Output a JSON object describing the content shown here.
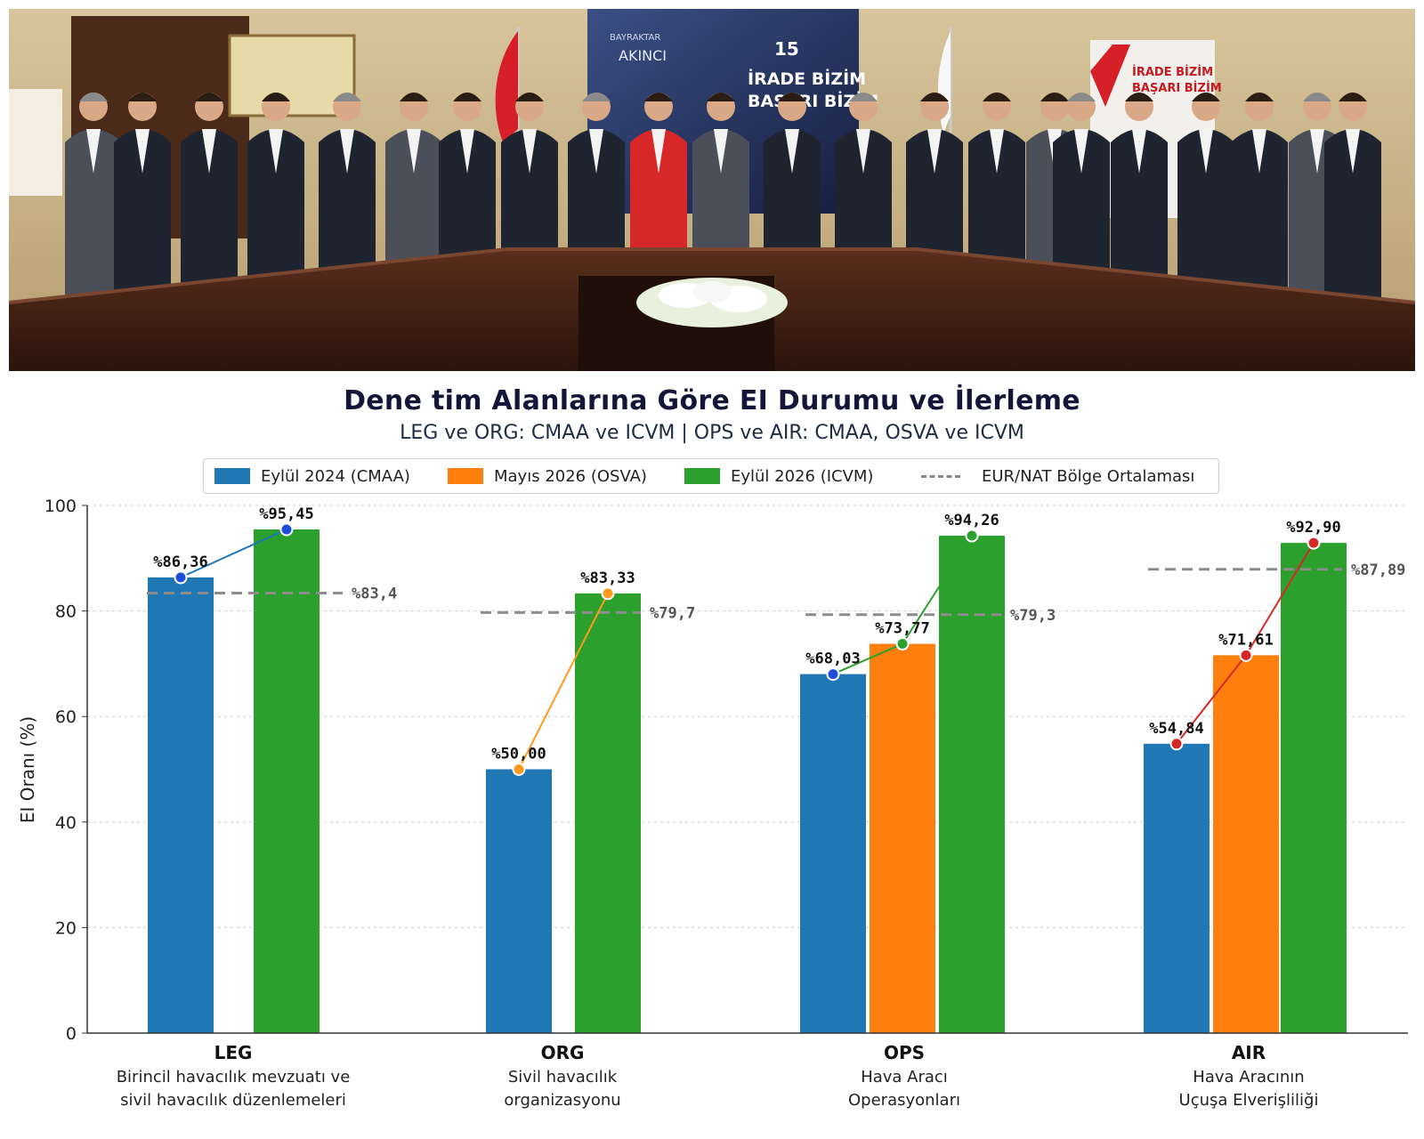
{
  "chart_data": {
    "type": "bar",
    "title": "Dene tim Alanlarına Göre EI Durumu ve İlerleme",
    "subtitle": "LEG ve ORG: CMAA ve ICVM | OPS ve AIR: CMAA, OSVA ve ICVM",
    "ylabel": "EI Oranı (%)",
    "ylim": [
      0,
      100
    ],
    "yticks": [
      0,
      20,
      40,
      60,
      80,
      100
    ],
    "grid": true,
    "legend_position": "top",
    "categories": [
      {
        "code": "LEG",
        "desc": [
          "Birincil havacılık mevzuatı ve",
          "sivil havacılık düzenlemeleri"
        ],
        "line_color": "#1f77b4",
        "marker_color": "#1d4fd8"
      },
      {
        "code": "ORG",
        "desc": [
          "Sivil havacılık",
          "organizasyonu"
        ],
        "line_color": "#ff9a1f",
        "marker_color": "#ff9a1f"
      },
      {
        "code": "OPS",
        "desc": [
          "Hava Aracı",
          "Operasyonları"
        ],
        "line_color": "#2ca02c",
        "marker_color": "#2ca02c"
      },
      {
        "code": "AIR",
        "desc": [
          "Hava Aracının",
          "Uçuşa Elverişliliği"
        ],
        "line_color": "#d62728",
        "marker_color": "#d62728"
      }
    ],
    "series": [
      {
        "name": "Eylül 2024 (CMAA)",
        "color": "#1f77b4",
        "values": [
          86.36,
          50.0,
          68.03,
          54.84
        ],
        "labels": [
          "%86,36",
          "%50,00",
          "%68,03",
          "%54,84"
        ]
      },
      {
        "name": "Mayıs 2026 (OSVA)",
        "color": "#ff7f0e",
        "values": [
          null,
          null,
          73.77,
          71.61
        ],
        "labels": [
          "",
          "",
          "%73,77",
          "%71,61"
        ]
      },
      {
        "name": "Eylül 2026 (ICVM)",
        "color": "#2ca02c",
        "values": [
          95.45,
          83.33,
          94.26,
          92.9
        ],
        "labels": [
          "%95,45",
          "%83,33",
          "%94,26",
          "%92,90"
        ]
      }
    ],
    "regional_average": {
      "name": "EUR/NAT Bölge Ortalaması",
      "color": "#8c8c8c",
      "values": [
        83.4,
        79.7,
        79.3,
        87.89
      ],
      "labels": [
        "%83,4",
        "%79,7",
        "%79,3",
        "%87,89"
      ]
    }
  },
  "photo": {
    "backdrop_text": [
      "BAYRAKTAR",
      "AKINCI",
      "İRADE BİZİM",
      "BASARI BİZİM"
    ],
    "banner_text": [
      "İRADE BİZİM",
      "BAŞARI BİZİM"
    ],
    "logo_text": "15",
    "colors": {
      "wall": "#c9b48a",
      "table": "#3a1f14",
      "suit_dark": "#1e2430",
      "flag": "#d61f26"
    }
  }
}
